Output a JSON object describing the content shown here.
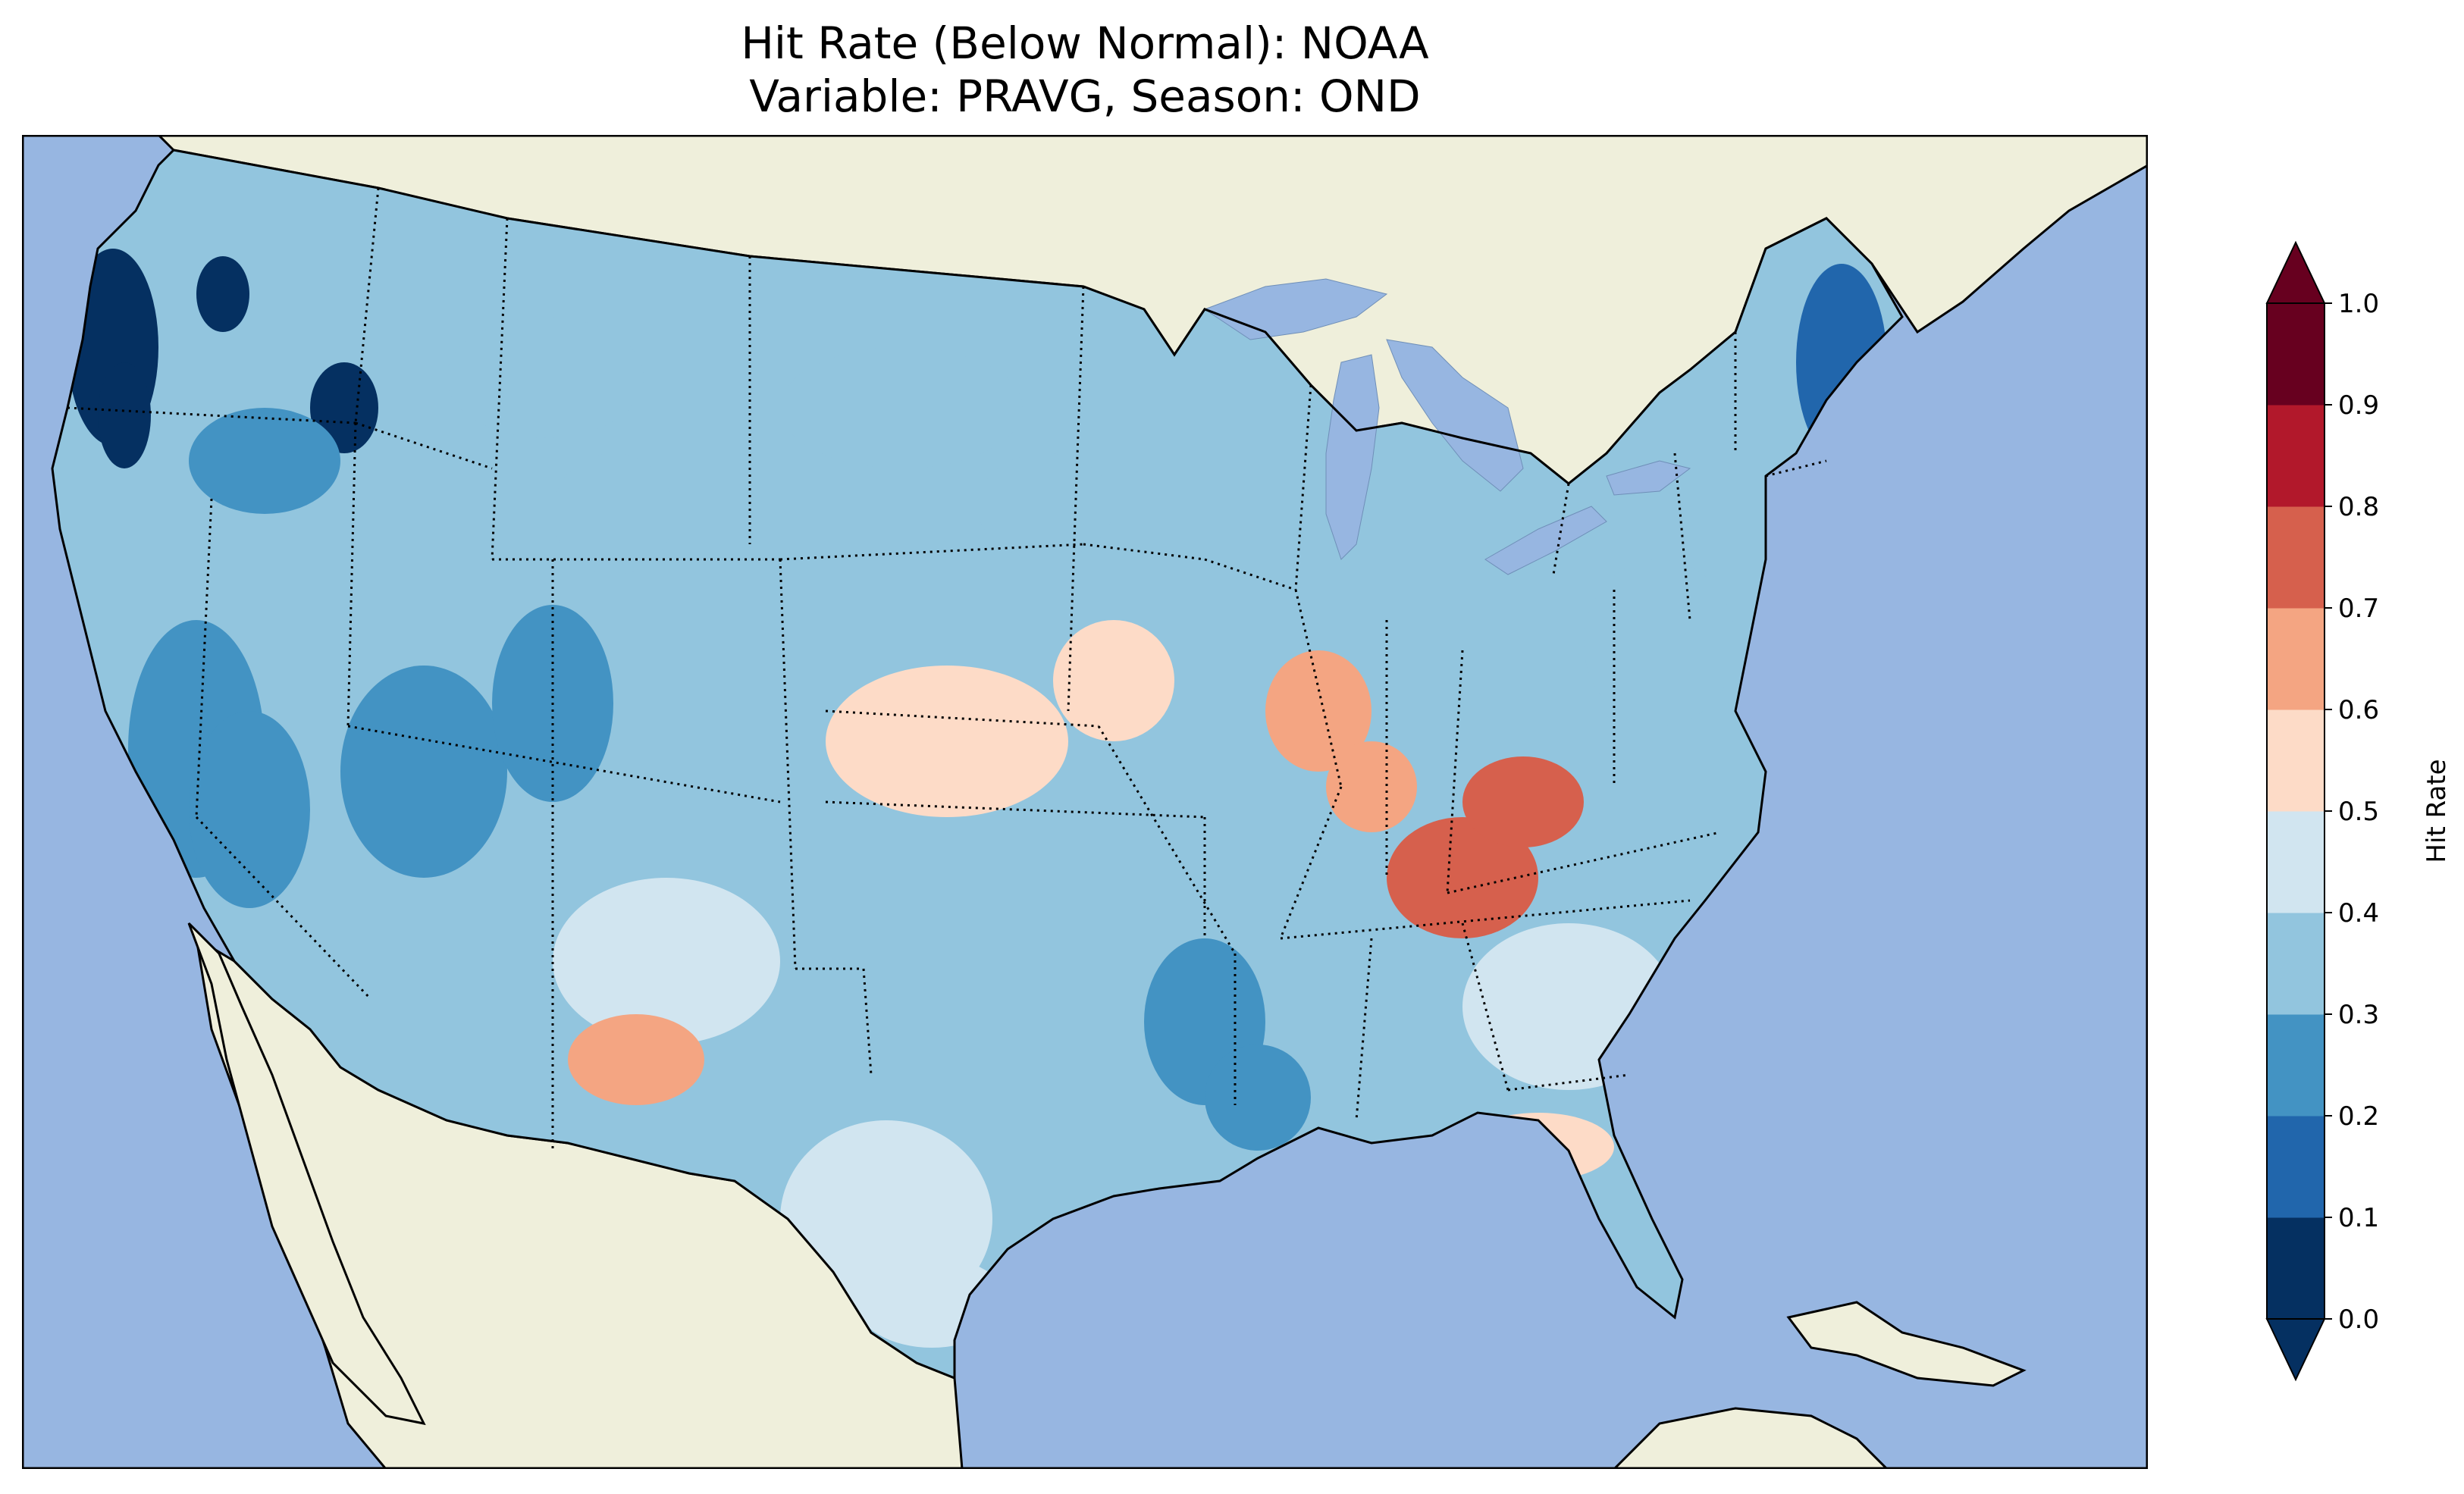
{
  "title": {
    "line1": "Hit Rate (Below Normal): NOAA",
    "line2": "Variable: PRAVG, Season: OND"
  },
  "map": {
    "projection": "conic",
    "region": "Contiguous United States",
    "ocean_color": "#97b6e1",
    "land_color": "#efefdb",
    "lake_color": "#97b6e1",
    "coastline_color": "#000000",
    "state_border_style": "dotted",
    "variable": "PRAVG",
    "season": "OND",
    "metric": "Hit Rate (Below Normal)",
    "model": "NOAA"
  },
  "colorbar": {
    "label": "Hit Rate",
    "colormap": "RdBu_r",
    "extend": "both",
    "ticks": [
      "0.0",
      "0.1",
      "0.2",
      "0.3",
      "0.4",
      "0.5",
      "0.6",
      "0.7",
      "0.8",
      "0.9",
      "1.0"
    ],
    "bin_colors": [
      "#053061",
      "#2166ac",
      "#4393c3",
      "#92c5de",
      "#d1e5f0",
      "#fddbc7",
      "#f4a582",
      "#d6604d",
      "#b2182b",
      "#67001f"
    ],
    "under_color": "#053061",
    "over_color": "#67001f",
    "range": [
      0.0,
      1.0
    ]
  },
  "regions": [
    {
      "name": "pacific-northwest-coast",
      "value": 0.05
    },
    {
      "name": "oregon-interior",
      "value": 0.25
    },
    {
      "name": "idaho-montana-west",
      "value": 0.35
    },
    {
      "name": "california",
      "value": 0.25
    },
    {
      "name": "nevada-utah",
      "value": 0.25
    },
    {
      "name": "northern-plains",
      "value": 0.3
    },
    {
      "name": "central-plains",
      "value": 0.55
    },
    {
      "name": "southern-rockies",
      "value": 0.45
    },
    {
      "name": "ohio-valley",
      "value": 0.75
    },
    {
      "name": "illinois-indiana",
      "value": 0.65
    },
    {
      "name": "lower-mississippi",
      "value": 0.25
    },
    {
      "name": "southeast",
      "value": 0.45
    },
    {
      "name": "gulf-coast-florida",
      "value": 0.55
    },
    {
      "name": "northeast-maine",
      "value": 0.1
    },
    {
      "name": "mid-atlantic",
      "value": 0.35
    },
    {
      "name": "texas",
      "value": 0.45
    },
    {
      "name": "new-mexico-south",
      "value": 0.6
    }
  ]
}
